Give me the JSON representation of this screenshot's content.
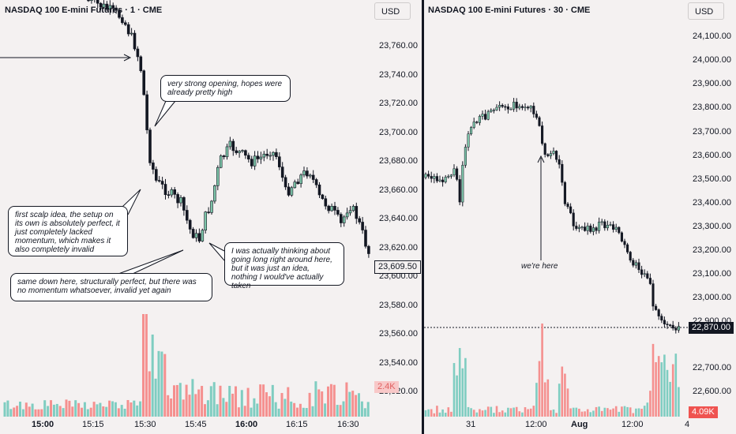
{
  "left_chart": {
    "title": "NASDAQ 100 E-mini Futures · 1 · CME",
    "currency_button": "USD",
    "price_axis": [
      "23,760.00",
      "23,740.00",
      "23,720.00",
      "23,700.00",
      "23,680.00",
      "23,660.00",
      "23,640.00",
      "23,620.00",
      "23,600.00",
      "23,580.00",
      "23,560.00",
      "23,540.00",
      "23,520.00"
    ],
    "time_axis": [
      {
        "label": "15:00",
        "bold": true
      },
      {
        "label": "15:15",
        "bold": false
      },
      {
        "label": "15:30",
        "bold": false
      },
      {
        "label": "15:45",
        "bold": false
      },
      {
        "label": "16:00",
        "bold": true
      },
      {
        "label": "16:15",
        "bold": false
      },
      {
        "label": "16:30",
        "bold": false
      }
    ],
    "last_price": "23,609.50",
    "volume_label": "2.4K",
    "notes": {
      "opening": "very strong opening, hopes were already pretty high",
      "first_scalp": "first scalp idea, the setup on its own is absolutely perfect, it just completely lacked momentum, which makes it also completely invalid",
      "same_down": "same down here, structurally perfect, but there was no momentum whatsoever, invalid yet again",
      "long": "I was actually thinking about going long right around here, but it was just an idea, nothing I would've actually taken"
    }
  },
  "right_chart": {
    "title": "NASDAQ 100 E-mini Futures · 30 · CME",
    "currency_button": "USD",
    "price_axis": [
      "24,100.00",
      "24,000.00",
      "23,900.00",
      "23,800.00",
      "23,700.00",
      "23,600.00",
      "23,500.00",
      "23,400.00",
      "23,300.00",
      "23,200.00",
      "23,100.00",
      "23,000.00",
      "22,900.00",
      "22,700.00",
      "22,600.00"
    ],
    "time_axis": [
      {
        "label": "31",
        "bold": false
      },
      {
        "label": "12:00",
        "bold": false
      },
      {
        "label": "Aug",
        "bold": true
      },
      {
        "label": "12:00",
        "bold": false
      },
      {
        "label": "4",
        "bold": false
      }
    ],
    "last_price": "22,870.00",
    "volume_label": "4.09K",
    "annotation": "we're here"
  },
  "colors": {
    "background": "#f4f1f1",
    "up_volume": "#7fcdc1",
    "down_volume": "#f5908f",
    "candle": "#131722"
  }
}
